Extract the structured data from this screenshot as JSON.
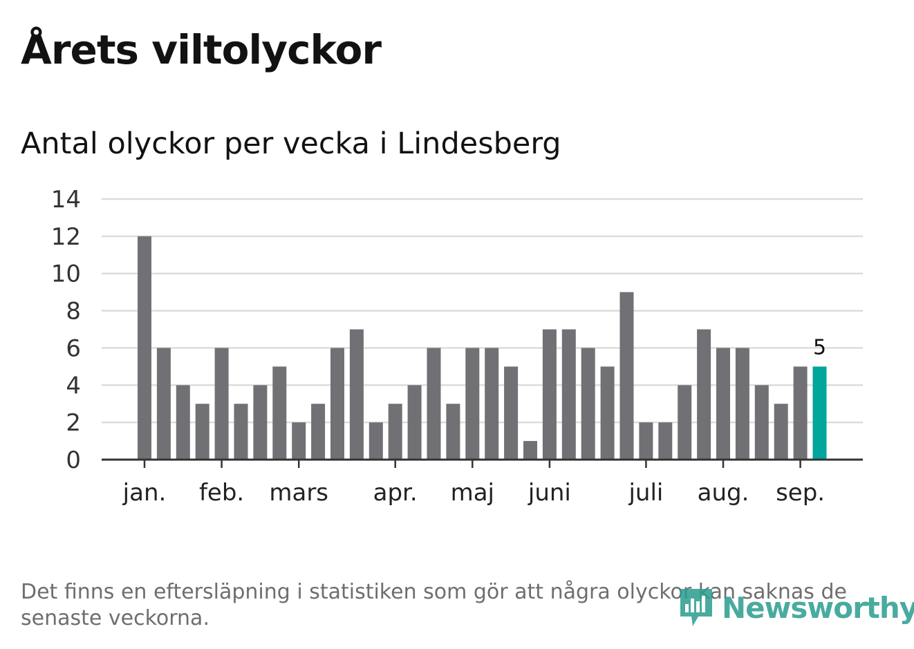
{
  "header": {
    "title": "Årets viltolyckor",
    "subtitle": "Antal olyckor per vecka i Lindesberg"
  },
  "footnote": "Det finns en eftersläpning i statistiken som gör att några olyckor kan saknas de senaste veckorna.",
  "brand": {
    "name": "Newsworthy",
    "icon": "bar-chart-speech-bubble-icon",
    "color": "#2a9d8f"
  },
  "colors": {
    "bar": "#717075",
    "highlight": "#00a59b",
    "grid": "#dcdcdc",
    "axis": "#333333"
  },
  "chart_data": {
    "type": "bar",
    "title": "Antal olyckor per vecka i Lindesberg",
    "xlabel": "",
    "ylabel": "",
    "ylim": [
      0,
      14
    ],
    "yticks": [
      0,
      2,
      4,
      6,
      8,
      10,
      12,
      14
    ],
    "grid": true,
    "values": [
      12,
      6,
      4,
      3,
      6,
      3,
      4,
      5,
      2,
      3,
      6,
      7,
      2,
      3,
      4,
      6,
      3,
      6,
      6,
      5,
      1,
      7,
      7,
      6,
      5,
      9,
      2,
      2,
      4,
      7,
      6,
      6,
      4,
      3,
      5,
      5
    ],
    "highlight_index": 35,
    "highlight_label": "5",
    "month_labels": [
      {
        "label": "jan.",
        "bar_index": 0
      },
      {
        "label": "feb.",
        "bar_index": 4
      },
      {
        "label": "mars",
        "bar_index": 8
      },
      {
        "label": "apr.",
        "bar_index": 13
      },
      {
        "label": "maj",
        "bar_index": 17
      },
      {
        "label": "juni",
        "bar_index": 21
      },
      {
        "label": "juli",
        "bar_index": 26
      },
      {
        "label": "aug.",
        "bar_index": 30
      },
      {
        "label": "sep.",
        "bar_index": 34
      }
    ]
  }
}
